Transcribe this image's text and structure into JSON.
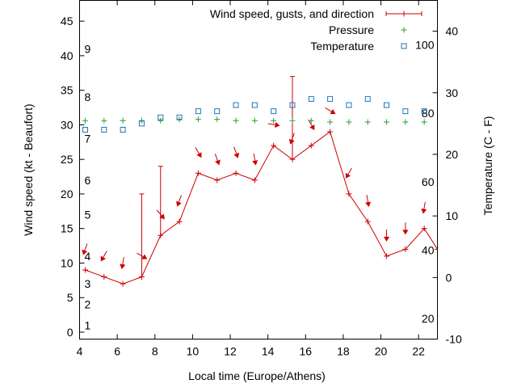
{
  "chart_data": {
    "type": "line",
    "xlabel": "Local time (Europe/Athens)",
    "ylabel": "Wind speed (kt - Beaufort)",
    "y2label": "Temperature (C - F)",
    "xlim": [
      4,
      23
    ],
    "ylim": [
      -1,
      48
    ],
    "y2lim": [
      -10,
      45
    ],
    "x_ticks": [
      "4",
      "6",
      "8",
      "10",
      "12",
      "14",
      "16",
      "18",
      "20",
      "22"
    ],
    "y_ticks": [
      "0",
      "5",
      "10",
      "15",
      "20",
      "25",
      "30",
      "35",
      "40",
      "45"
    ],
    "y2_ticks": [
      "-10",
      "0",
      "10",
      "20",
      "30",
      "40"
    ],
    "beaufort_labels": [
      {
        "label": "1",
        "kt": 1
      },
      {
        "label": "2",
        "kt": 4
      },
      {
        "label": "3",
        "kt": 7
      },
      {
        "label": "4",
        "kt": 11
      },
      {
        "label": "5",
        "kt": 17
      },
      {
        "label": "6",
        "kt": 22
      },
      {
        "label": "7",
        "kt": 28
      },
      {
        "label": "8",
        "kt": 34
      },
      {
        "label": "9",
        "kt": 41
      }
    ],
    "fahrenheit_labels": [
      {
        "label": "20",
        "c": -6.67
      },
      {
        "label": "40",
        "c": 4.44
      },
      {
        "label": "60",
        "c": 15.56
      },
      {
        "label": "80",
        "c": 26.67
      },
      {
        "label": "100",
        "c": 37.78
      }
    ],
    "legend": [
      {
        "name": "Wind speed, gusts, and direction",
        "color": "#cc0000",
        "marker": "plus-line"
      },
      {
        "name": "Pressure",
        "color": "#2ca02c",
        "marker": "plus"
      },
      {
        "name": "Temperature",
        "color": "#1f77b4",
        "marker": "square"
      }
    ],
    "legend_position": "top-right",
    "series": [
      {
        "name": "Wind speed, gusts, and direction",
        "color": "#cc0000",
        "x": [
          4.3,
          5.3,
          6.3,
          7.3,
          8.3,
          9.3,
          10.3,
          11.3,
          12.3,
          13.3,
          14.3,
          15.3,
          16.3,
          17.3,
          18.3,
          19.3,
          20.3,
          21.3,
          22.3,
          23.0
        ],
        "values": [
          9,
          8,
          7,
          8,
          14,
          16,
          23,
          22,
          23,
          22,
          27,
          25,
          27,
          29,
          20,
          16,
          11,
          12,
          15,
          12
        ],
        "gusts": [
          9,
          8,
          7,
          20,
          24,
          16,
          23,
          22,
          23,
          22,
          27,
          37,
          27,
          29,
          20,
          16,
          11,
          12,
          15,
          12
        ],
        "direction_deg": [
          20,
          30,
          10,
          300,
          320,
          20,
          330,
          340,
          340,
          350,
          280,
          20,
          330,
          300,
          30,
          350,
          0,
          0,
          10,
          0
        ]
      },
      {
        "name": "Pressure",
        "color": "#2ca02c",
        "x": [
          4.3,
          5.3,
          6.3,
          7.3,
          8.3,
          9.3,
          10.3,
          11.3,
          12.3,
          13.3,
          14.3,
          15.3,
          16.3,
          17.3,
          18.3,
          19.3,
          20.3,
          21.3,
          22.3
        ],
        "values_on_wind_axis": [
          30.6,
          30.6,
          30.6,
          30.6,
          30.6,
          30.8,
          30.8,
          30.8,
          30.6,
          30.6,
          30.6,
          30.6,
          30.6,
          30.4,
          30.4,
          30.4,
          30.4,
          30.4,
          30.4
        ]
      },
      {
        "name": "Temperature",
        "color": "#1f77b4",
        "x": [
          4.3,
          5.3,
          6.3,
          7.3,
          8.3,
          9.3,
          10.3,
          11.3,
          12.3,
          13.3,
          14.3,
          15.3,
          16.3,
          17.3,
          18.3,
          19.3,
          20.3,
          21.3,
          22.3
        ],
        "values": [
          24,
          24,
          24,
          25,
          26,
          26,
          27,
          27,
          28,
          28,
          27,
          28,
          29,
          29,
          28,
          29,
          28,
          27,
          27
        ]
      }
    ]
  }
}
